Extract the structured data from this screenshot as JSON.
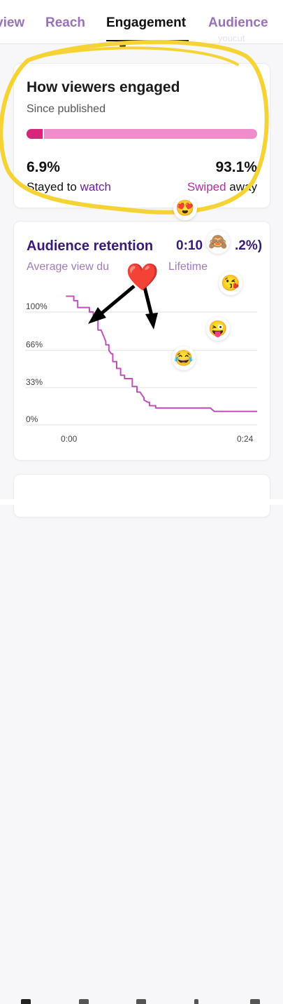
{
  "tabs": [
    {
      "label": "view",
      "active": false
    },
    {
      "label": "Reach",
      "active": false
    },
    {
      "label": "Engagement",
      "active": true
    },
    {
      "label": "Audience",
      "active": false
    }
  ],
  "watermark": "youcut",
  "engaged": {
    "title": "How viewers engaged",
    "subtitle": "Since published",
    "stayed_pct": "6.9%",
    "stayed_fraction": 0.069,
    "swiped_pct": "93.1%",
    "stayed_label_1": "Stayed to ",
    "stayed_label_2": "watch",
    "swiped_label_1": "Swiped",
    "swiped_label_2": " away"
  },
  "retention": {
    "title": "Audience retention",
    "time": "0:10",
    "pct_tail": ".2%)",
    "sub_left": "Average view du",
    "sub_right": "Lifetime"
  },
  "chart_data": {
    "type": "line",
    "title": "Audience retention",
    "x_tick_labels": [
      "0:00",
      "0:24"
    ],
    "y_tick_labels": [
      "100%",
      "66%",
      "33%",
      "0%"
    ],
    "ylim": [
      0,
      120
    ],
    "xlim": [
      0,
      24
    ],
    "grid": true,
    "series": [
      {
        "color": "#c24fbb",
        "x": [
          -0.5,
          0.5,
          0.5,
          1.0,
          1.0,
          2.5,
          2.5,
          3.0,
          3.0,
          3.6,
          3.6,
          4.0,
          4.6,
          4.6,
          5.0,
          5.0,
          5.3,
          5.5,
          5.5,
          6.0,
          6.0,
          6.5,
          6.5,
          7.0,
          7.0,
          8.0,
          8.0,
          8.6,
          8.6,
          9.0,
          9.5,
          9.5,
          10.0,
          10.2,
          10.2,
          11.0,
          11.0,
          18.0,
          18.5,
          24.0
        ],
        "y": [
          114,
          114,
          110,
          110,
          104,
          104,
          100,
          100,
          93,
          93,
          84,
          84,
          74,
          71,
          71,
          66,
          63,
          63,
          56,
          56,
          50,
          50,
          44,
          44,
          41,
          41,
          34,
          34,
          29,
          29,
          24,
          22,
          20,
          20,
          17,
          17,
          15,
          15,
          12,
          12
        ]
      }
    ]
  },
  "stickers": {
    "grin_hearts": "😍",
    "monkey": "🙈",
    "kiss": "😘",
    "wink_tongue": "😜",
    "joy": "😂",
    "heart": "❤️"
  },
  "colors": {
    "bar_track": "#ee8dc9",
    "bar_fill": "#d6257a",
    "highlight": "#f5d335",
    "line": "#c24fbb"
  },
  "icons": [
    "grid-icon",
    "library-icon",
    "play-icon",
    "alert-icon",
    "person-icon"
  ]
}
